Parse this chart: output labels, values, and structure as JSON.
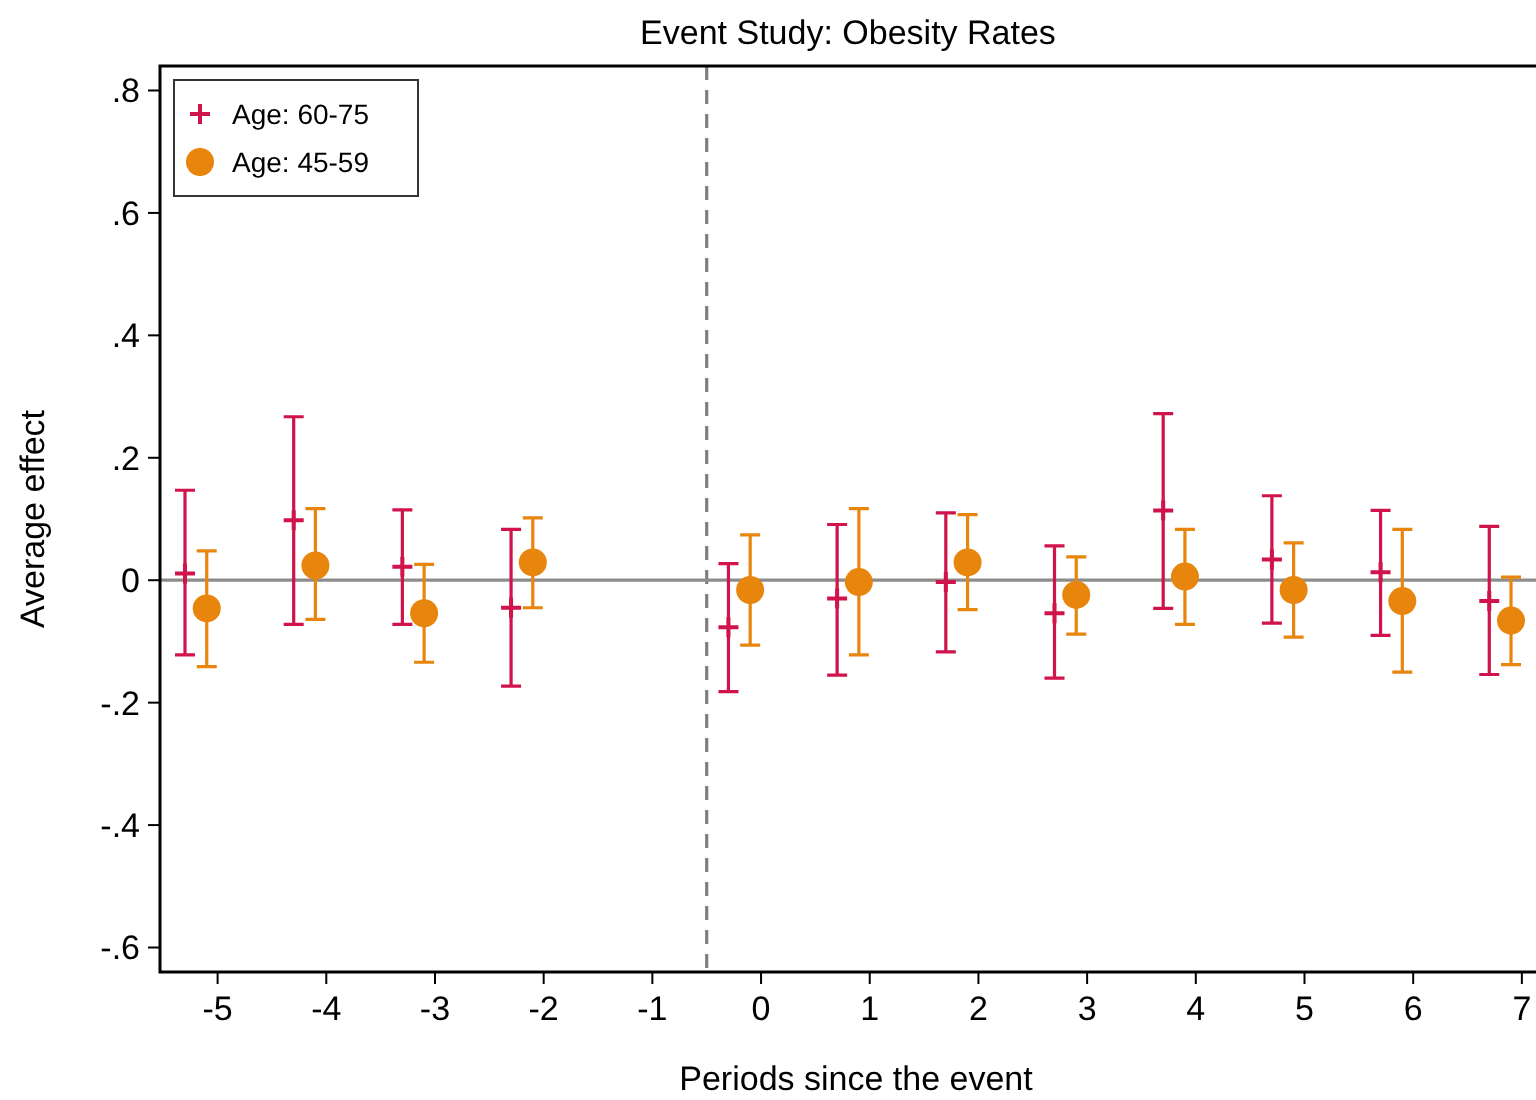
{
  "chart_data": {
    "type": "scatter",
    "title": "Event Study: Obesity Rates",
    "xlabel": "Periods since the event",
    "ylabel": "Average effect",
    "xlim": [
      -5.53,
      7.13
    ],
    "ylim": [
      -0.64,
      0.84
    ],
    "xticks": [
      -5,
      -4,
      -3,
      -2,
      -1,
      0,
      1,
      2,
      3,
      4,
      5,
      6,
      7
    ],
    "yticks": [
      {
        "value": -0.6,
        "label": "-.6"
      },
      {
        "value": -0.4,
        "label": "-.4"
      },
      {
        "value": -0.2,
        "label": "-.2"
      },
      0,
      {
        "value": 0.2,
        "label": ".2"
      },
      {
        "value": 0.4,
        "label": ".4"
      },
      {
        "value": 0.6,
        "label": ".6"
      },
      {
        "value": 0.8,
        "label": ".8"
      }
    ],
    "grid": false,
    "legend": "top left",
    "ref_lines": [
      {
        "axis": "x",
        "value": -0.5,
        "color": "#7f7f7f",
        "line_style": "dashed"
      },
      {
        "axis": "y",
        "value": 0,
        "color": "#8c8c8c",
        "line_style": "solid"
      }
    ],
    "series": [
      {
        "name": "Age: 60-75",
        "color": "#d0134a",
        "marker": "cross",
        "x": [
          -5.3,
          -4.3,
          -3.3,
          -2.3,
          -0.3,
          0.7,
          1.7,
          2.7,
          3.7,
          4.7,
          5.7,
          6.7
        ],
        "values": [
          0.011,
          0.098,
          0.022,
          -0.045,
          -0.077,
          -0.03,
          -0.003,
          -0.054,
          0.114,
          0.034,
          0.013,
          -0.034
        ],
        "errors": [
          [
            -0.122,
            0.147
          ],
          [
            -0.072,
            0.267
          ],
          [
            -0.072,
            0.115
          ],
          [
            -0.173,
            0.083
          ],
          [
            -0.182,
            0.027
          ],
          [
            -0.155,
            0.091
          ],
          [
            -0.117,
            0.11
          ],
          [
            -0.16,
            0.056
          ],
          [
            -0.046,
            0.272
          ],
          [
            -0.07,
            0.138
          ],
          [
            -0.09,
            0.114
          ],
          [
            -0.154,
            0.088
          ]
        ]
      },
      {
        "name": "Age: 45-59",
        "color": "#e8850c",
        "marker": "circle",
        "x": [
          -5.1,
          -4.1,
          -3.1,
          -2.1,
          -0.1,
          0.9,
          1.9,
          2.9,
          3.9,
          4.9,
          5.9,
          6.9
        ],
        "values": [
          -0.046,
          0.024,
          -0.054,
          0.029,
          -0.016,
          -0.003,
          0.029,
          -0.024,
          0.006,
          -0.016,
          -0.034,
          -0.066
        ],
        "errors": [
          [
            -0.141,
            0.048
          ],
          [
            -0.064,
            0.117
          ],
          [
            -0.134,
            0.026
          ],
          [
            -0.045,
            0.102
          ],
          [
            -0.106,
            0.074
          ],
          [
            -0.122,
            0.117
          ],
          [
            -0.048,
            0.107
          ],
          [
            -0.088,
            0.038
          ],
          [
            -0.072,
            0.083
          ],
          [
            -0.093,
            0.061
          ],
          [
            -0.15,
            0.083
          ],
          [
            -0.138,
            0.005
          ]
        ]
      }
    ]
  }
}
